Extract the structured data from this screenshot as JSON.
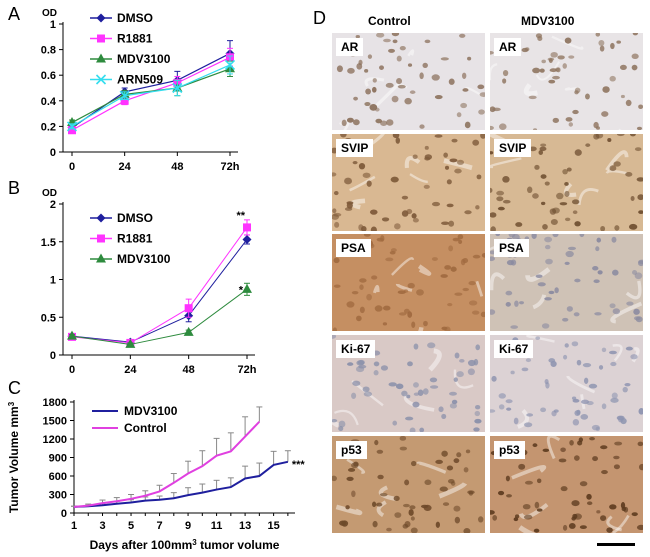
{
  "panel_labels": {
    "A": "A",
    "B": "B",
    "C": "C",
    "D": "D"
  },
  "colors": {
    "blue": "#1f1f9e",
    "magenta": "#ff33ff",
    "green": "#2e8b3e",
    "cyan": "#33ddee"
  },
  "chart_data": [
    {
      "id": "A",
      "type": "line",
      "ylabel": "OD",
      "categories": [
        "0",
        "24",
        "48",
        "72h"
      ],
      "x": [
        0,
        24,
        48,
        72
      ],
      "ylim": [
        0,
        1
      ],
      "yticks": [
        "0",
        "0.2",
        "0.4",
        "0.6",
        "0.8",
        "1"
      ],
      "yticks_values": [
        0,
        0.2,
        0.4,
        0.6,
        0.8,
        1
      ],
      "grid": false,
      "legend_position": "top-left",
      "series": [
        {
          "name": "DMSO",
          "color": "#1f1f9e",
          "marker": "diamond",
          "values": [
            0.19,
            0.47,
            0.56,
            0.77
          ],
          "err": [
            0.02,
            0.03,
            0.07,
            0.1
          ]
        },
        {
          "name": "R1881",
          "color": "#ff33ff",
          "marker": "square",
          "values": [
            0.17,
            0.4,
            0.54,
            0.74
          ],
          "err": [
            0.02,
            0.03,
            0.05,
            0.07
          ]
        },
        {
          "name": "MDV3100",
          "color": "#2e8b3e",
          "marker": "triangle",
          "values": [
            0.23,
            0.45,
            0.5,
            0.65
          ],
          "err": [
            0.02,
            0.03,
            0.06,
            0.06
          ]
        },
        {
          "name": "ARN509",
          "color": "#33ddee",
          "marker": "x",
          "values": [
            0.2,
            0.44,
            0.5,
            0.68
          ],
          "err": [
            0.02,
            0.03,
            0.06,
            0.07
          ]
        }
      ]
    },
    {
      "id": "B",
      "type": "line",
      "ylabel": "OD",
      "categories": [
        "0",
        "24",
        "48",
        "72h"
      ],
      "x": [
        0,
        24,
        48,
        72
      ],
      "ylim": [
        0,
        2
      ],
      "yticks": [
        "0",
        "0.5",
        "1",
        "1.5",
        "2"
      ],
      "yticks_values": [
        0,
        0.5,
        1,
        1.5,
        2
      ],
      "grid": false,
      "legend_position": "top-left",
      "annotations": [
        "**",
        "*"
      ],
      "series": [
        {
          "name": "DMSO",
          "color": "#1f1f9e",
          "marker": "diamond",
          "values": [
            0.25,
            0.17,
            0.52,
            1.53
          ],
          "err": [
            0.02,
            0.03,
            0.08,
            0.06
          ]
        },
        {
          "name": "R1881",
          "color": "#ff33ff",
          "marker": "square",
          "values": [
            0.24,
            0.16,
            0.62,
            1.69
          ],
          "err": [
            0.02,
            0.03,
            0.12,
            0.1
          ]
        },
        {
          "name": "MDV3100",
          "color": "#2e8b3e",
          "marker": "triangle",
          "values": [
            0.25,
            0.14,
            0.3,
            0.87
          ],
          "err": [
            0.02,
            0.02,
            0.03,
            0.08
          ]
        }
      ]
    },
    {
      "id": "C",
      "type": "line",
      "ylabel": "Tumor Volume mm",
      "ylabel_sup": "3",
      "xlabel": "Days after 100mm",
      "xlabel_sup": "3",
      "xlabel_suffix": " tumor volume",
      "xticks": [
        "1",
        "3",
        "5",
        "7",
        "9",
        "11",
        "13",
        "15"
      ],
      "xticks_values": [
        1,
        3,
        5,
        7,
        9,
        11,
        13,
        15
      ],
      "xlim": [
        1,
        16.5
      ],
      "ylim": [
        0,
        1800
      ],
      "yticks": [
        "0",
        "300",
        "600",
        "900",
        "1200",
        "1500",
        "1800"
      ],
      "yticks_values": [
        0,
        300,
        600,
        900,
        1200,
        1500,
        1800
      ],
      "grid": false,
      "legend_position": "top-left",
      "annotations": [
        "***"
      ],
      "series": [
        {
          "name": "MDV3100",
          "color": "#1f1f9e",
          "x": [
            1,
            2,
            3,
            4,
            5,
            6,
            7,
            8,
            9,
            10,
            11,
            12,
            13,
            14,
            15,
            16
          ],
          "values": [
            100,
            110,
            125,
            150,
            170,
            200,
            215,
            240,
            290,
            330,
            380,
            420,
            560,
            600,
            780,
            830
          ],
          "err": [
            10,
            15,
            30,
            40,
            45,
            60,
            60,
            90,
            120,
            140,
            150,
            150,
            200,
            210,
            220,
            180
          ]
        },
        {
          "name": "Control",
          "color": "#e040e0",
          "x": [
            1,
            2,
            3,
            4,
            5,
            6,
            7,
            8,
            9,
            10,
            11,
            12,
            13,
            14
          ],
          "values": [
            100,
            120,
            160,
            190,
            230,
            280,
            350,
            490,
            640,
            760,
            930,
            1000,
            1240,
            1480
          ],
          "err": [
            10,
            25,
            50,
            60,
            70,
            80,
            100,
            150,
            200,
            250,
            280,
            300,
            320,
            240
          ]
        }
      ]
    }
  ],
  "panelD": {
    "col_headers": [
      "Control",
      "MDV3100"
    ],
    "rows": [
      {
        "label": "AR",
        "tint": [
          "#e7e3e6",
          "#e8e4e6"
        ],
        "nucleus": [
          "#8a6f5a",
          "#8f7560"
        ]
      },
      {
        "label": "SVIP",
        "tint": [
          "#d9b892",
          "#d7b994"
        ],
        "nucleus": [
          "#7e5a3a",
          "#6e4e30"
        ]
      },
      {
        "label": "PSA",
        "tint": [
          "#c58f62",
          "#cfc2b6"
        ],
        "nucleus": [
          "#a06a40",
          "#8a8aa0"
        ]
      },
      {
        "label": "Ki-67",
        "tint": [
          "#d9c9c6",
          "#dcd2d4"
        ],
        "nucleus": [
          "#8a90aa",
          "#8e94b0"
        ]
      },
      {
        "label": "p53",
        "tint": [
          "#c49a72",
          "#c49570"
        ],
        "nucleus": [
          "#6e4a2a",
          "#5c3a1e"
        ]
      }
    ]
  }
}
